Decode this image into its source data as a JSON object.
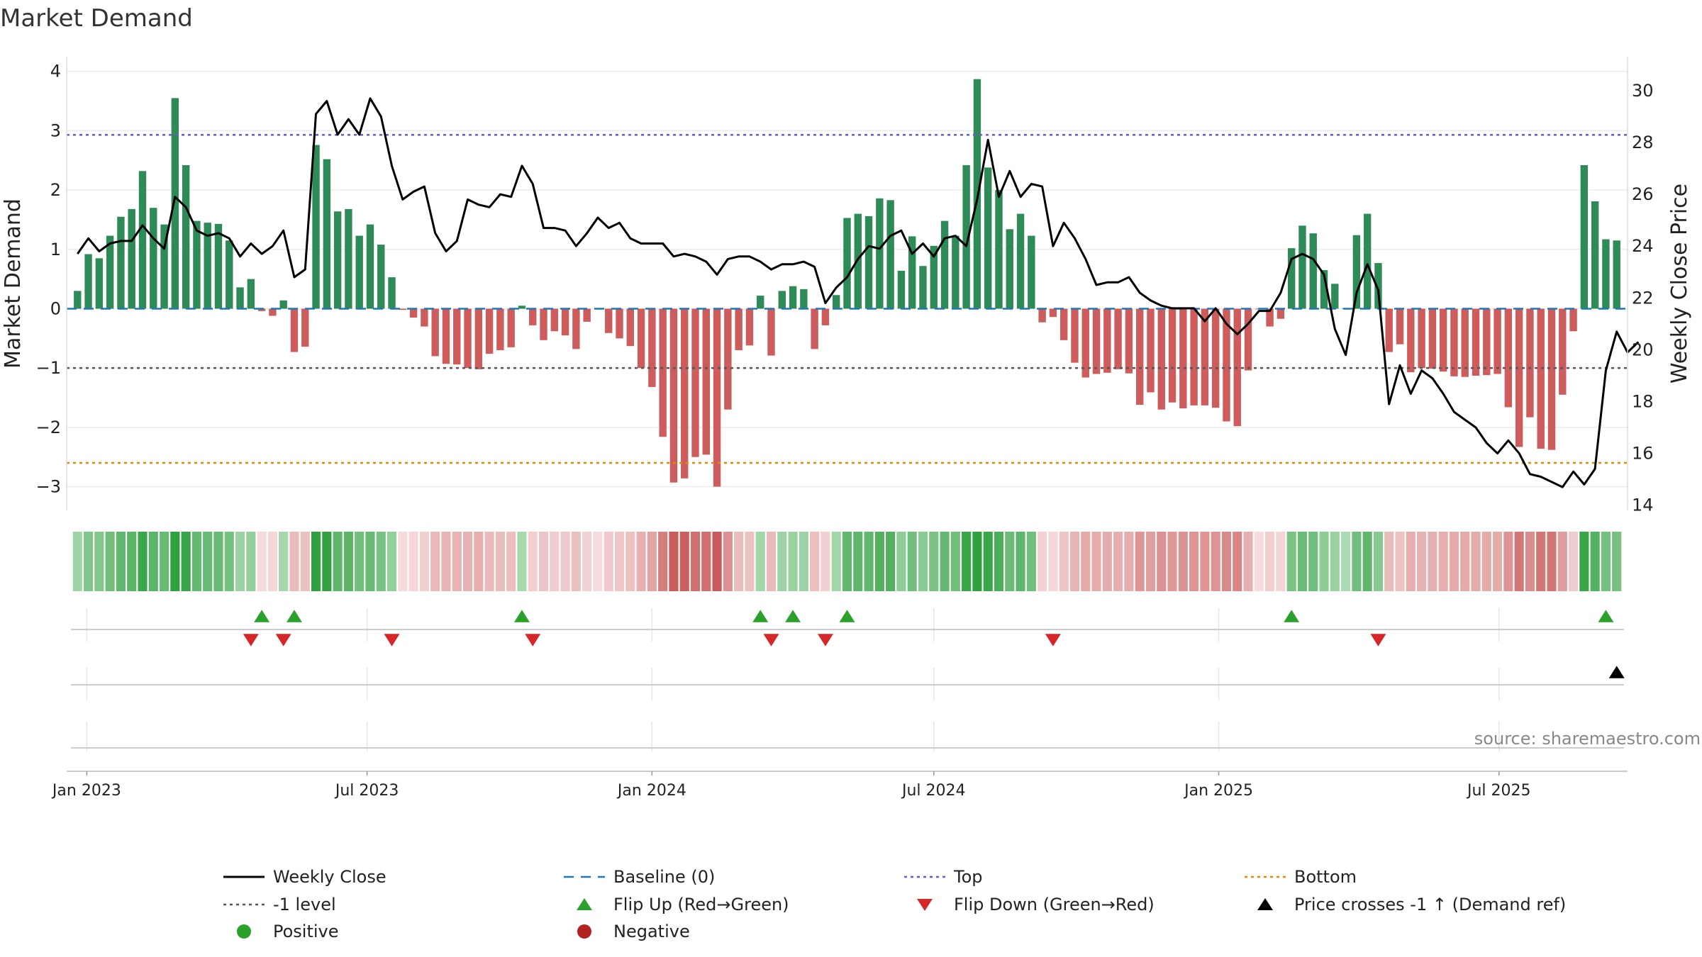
{
  "chart_data": {
    "type": "bar+line",
    "title": "Market Demand",
    "ylabel_left": "Market Demand",
    "ylabel_right": "Weekly Close Price",
    "ylim_left": [
      -3.4,
      4.2
    ],
    "ylim_right": [
      13.8,
      31.2
    ],
    "yticks_left": [
      -3,
      -2,
      -1,
      0,
      1,
      2,
      3,
      4
    ],
    "yticks_left_labels": [
      "−3",
      "−2",
      "−1",
      "0",
      "1",
      "2",
      "3",
      "4"
    ],
    "yticks_right": [
      14,
      16,
      18,
      20,
      22,
      24,
      26,
      28,
      30
    ],
    "yticks_right_labels": [
      "14",
      "16",
      "18",
      "20",
      "22",
      "24",
      "26",
      "28",
      "30"
    ],
    "x_start": "2022-12-19",
    "x_end": "2025-09-22",
    "week_start": "2022-12-26",
    "xticks": [
      {
        "date": "2023-01-01",
        "label": "Jan 2023"
      },
      {
        "date": "2023-07-01",
        "label": "Jul 2023"
      },
      {
        "date": "2024-01-01",
        "label": "Jan 2024"
      },
      {
        "date": "2024-07-01",
        "label": "Jul 2024"
      },
      {
        "date": "2025-01-01",
        "label": "Jan 2025"
      },
      {
        "date": "2025-07-01",
        "label": "Jul 2025"
      }
    ],
    "levels": {
      "top": 2.93,
      "bottom": -2.6,
      "minus_one": -1,
      "baseline": 0
    },
    "demand": [
      0.3,
      0.92,
      0.85,
      1.23,
      1.55,
      1.68,
      2.32,
      1.7,
      1.42,
      3.55,
      2.42,
      1.48,
      1.45,
      1.43,
      1.15,
      0.36,
      0.5,
      -0.04,
      -0.12,
      0.14,
      -0.73,
      -0.64,
      2.76,
      2.52,
      1.64,
      1.68,
      1.23,
      1.42,
      1.08,
      0.53,
      -0.02,
      -0.15,
      -0.3,
      -0.8,
      -0.93,
      -0.94,
      -1.0,
      -1.02,
      -0.76,
      -0.7,
      -0.65,
      0.05,
      -0.28,
      -0.53,
      -0.38,
      -0.45,
      -0.68,
      -0.22,
      -0.01,
      -0.41,
      -0.5,
      -0.63,
      -1.0,
      -1.32,
      -2.16,
      -2.93,
      -2.86,
      -2.5,
      -2.46,
      -3.0,
      -1.7,
      -0.7,
      -0.62,
      0.22,
      -0.79,
      0.3,
      0.38,
      0.33,
      -0.68,
      -0.28,
      0.23,
      1.53,
      1.6,
      1.56,
      1.86,
      1.83,
      0.64,
      1.22,
      0.72,
      1.06,
      1.48,
      1.23,
      2.42,
      3.87,
      2.38,
      2.0,
      1.34,
      1.6,
      1.23,
      -0.23,
      -0.14,
      -0.53,
      -0.91,
      -1.16,
      -1.1,
      -1.08,
      -1.02,
      -1.09,
      -1.62,
      -1.41,
      -1.7,
      -1.58,
      -1.68,
      -1.63,
      -1.63,
      -1.67,
      -1.9,
      -1.98,
      -1.04,
      -0.01,
      -0.3,
      -0.17,
      1.02,
      1.4,
      1.27,
      0.65,
      0.42,
      0.01,
      1.24,
      1.6,
      0.77,
      -0.73,
      -0.6,
      -1.07,
      -1.0,
      -1.01,
      -1.06,
      -1.14,
      -1.15,
      -1.13,
      -1.12,
      -1.1,
      -1.66,
      -2.33,
      -1.83,
      -2.36,
      -2.38,
      -1.45,
      -0.38,
      2.42,
      1.81,
      1.17,
      1.15
    ],
    "weekly_close": [
      23.7,
      24.3,
      23.8,
      24.1,
      24.2,
      24.2,
      24.8,
      24.3,
      23.9,
      25.9,
      25.5,
      24.6,
      24.4,
      24.5,
      24.3,
      23.6,
      24.1,
      23.7,
      24.0,
      24.6,
      22.8,
      23.1,
      29.1,
      29.6,
      28.3,
      28.9,
      28.3,
      29.7,
      29.0,
      27.1,
      25.8,
      26.1,
      26.3,
      24.5,
      23.8,
      24.2,
      25.8,
      25.6,
      25.5,
      26.0,
      25.9,
      27.1,
      26.4,
      24.7,
      24.7,
      24.6,
      24.0,
      24.5,
      25.1,
      24.7,
      24.9,
      24.3,
      24.1,
      24.1,
      24.1,
      23.6,
      23.7,
      23.6,
      23.4,
      22.9,
      23.5,
      23.6,
      23.6,
      23.4,
      23.1,
      23.3,
      23.3,
      23.4,
      23.2,
      21.8,
      22.4,
      22.8,
      23.5,
      24.0,
      23.9,
      24.4,
      24.6,
      23.7,
      24.1,
      23.6,
      24.3,
      24.4,
      24.0,
      25.8,
      28.1,
      25.9,
      26.9,
      25.9,
      26.4,
      26.3,
      24.0,
      24.9,
      24.3,
      23.5,
      22.5,
      22.6,
      22.6,
      22.8,
      22.2,
      21.9,
      21.7,
      21.6,
      21.6,
      21.6,
      21.1,
      21.6,
      21.0,
      20.6,
      21.0,
      21.5,
      21.5,
      22.2,
      23.5,
      23.7,
      23.5,
      22.9,
      20.8,
      19.8,
      22.2,
      23.3,
      22.3,
      17.9,
      19.4,
      18.3,
      19.2,
      18.9,
      18.3,
      17.6,
      17.3,
      17.0,
      16.4,
      16.0,
      16.5,
      16.0,
      15.2,
      15.1,
      14.9,
      14.7,
      15.3,
      14.8,
      15.4,
      19.2,
      20.7,
      19.9,
      20.3
    ],
    "flip_up_weeks": [
      17,
      20,
      41,
      63,
      66,
      71,
      112,
      141
    ],
    "flip_down_weeks": [
      16,
      19,
      29,
      42,
      64,
      69,
      90,
      120
    ],
    "price_cross_weeks": [
      142
    ],
    "heat_color_positive_base": "#f0faf0",
    "heat_color_positive_peak": "#30a040",
    "heat_color_negative_base": "#f6dcdc",
    "heat_color_negative_peak": "#c85a5a",
    "source": "source: sharemaestro.com",
    "legend": [
      {
        "key": "weekly-close",
        "label": "Weekly Close",
        "kind": "line",
        "color": "#000000"
      },
      {
        "key": "baseline",
        "label": "Baseline (0)",
        "kind": "dash",
        "color": "#1f77b4"
      },
      {
        "key": "top",
        "label": "Top",
        "kind": "dot",
        "color": "#6a5acd"
      },
      {
        "key": "bottom",
        "label": "Bottom",
        "kind": "dot",
        "color": "#e08a00"
      },
      {
        "key": "minus-one",
        "label": "-1 level",
        "kind": "dot",
        "color": "#555555"
      },
      {
        "key": "flip-up",
        "label": "Flip Up (Red→Green)",
        "kind": "tri-up",
        "color": "#2ca02c"
      },
      {
        "key": "flip-down",
        "label": "Flip Down (Green→Red)",
        "kind": "tri-down",
        "color": "#d62728"
      },
      {
        "key": "price-cross",
        "label": "Price crosses -1 ↑ (Demand ref)",
        "kind": "tri-up",
        "color": "#000000"
      },
      {
        "key": "positive",
        "label": "Positive",
        "kind": "circle",
        "color": "#2ca02c"
      },
      {
        "key": "negative",
        "label": "Negative",
        "kind": "circle",
        "color": "#b22222"
      }
    ]
  },
  "colors": {
    "bar_positive": "#2e8b57",
    "bar_negative": "#cd5c5c",
    "top_line": "#6a5acd",
    "bottom_line": "#e08a00",
    "minus_one_line": "#555555",
    "baseline": "#1f77b4",
    "price_line": "#000000",
    "flip_up": "#2ca02c",
    "flip_down": "#d62728"
  }
}
